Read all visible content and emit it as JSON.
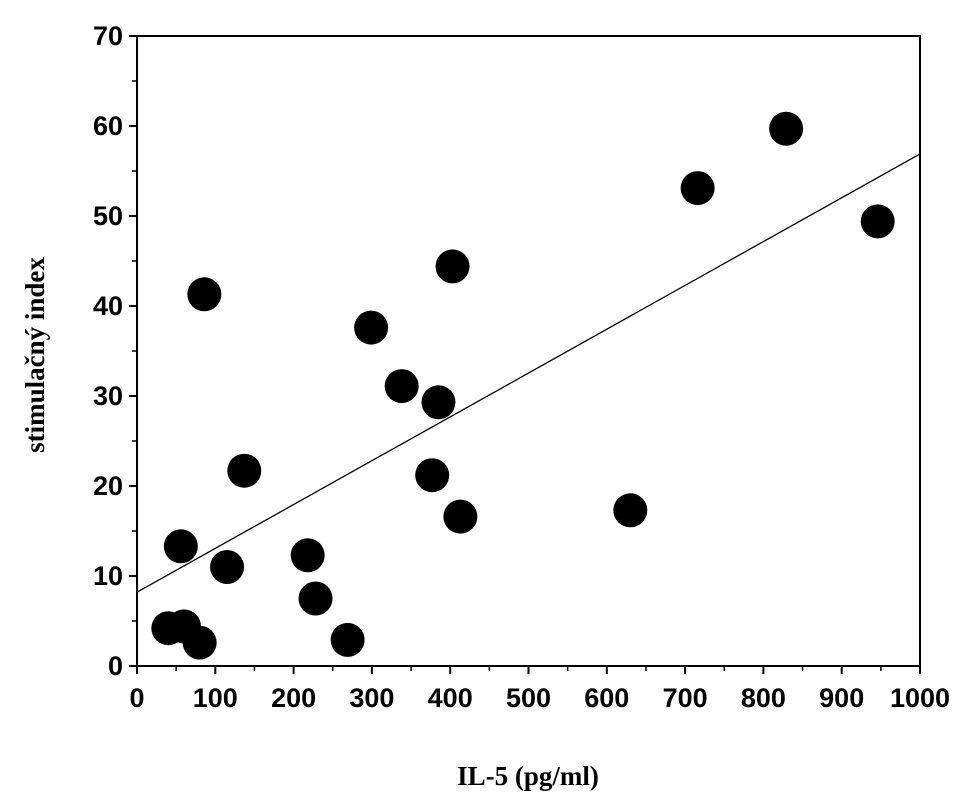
{
  "chart_data": {
    "type": "scatter",
    "title": "",
    "xlabel": "IL-5 (pg/ml)",
    "ylabel": "stimulačný index",
    "xlim": [
      0,
      1000
    ],
    "ylim": [
      0,
      70
    ],
    "x_ticks": [
      "0",
      "100",
      "200",
      "300",
      "400",
      "500",
      "600",
      "700",
      "800",
      "900",
      "1000"
    ],
    "y_ticks": [
      "0",
      "10",
      "20",
      "30",
      "40",
      "50",
      "60",
      "70"
    ],
    "grid": false,
    "legend": "none",
    "colors": {
      "points": "#000000",
      "axes": "#000000",
      "background": "#ffffff"
    },
    "points": [
      {
        "x": 40,
        "y": 4.2
      },
      {
        "x": 60,
        "y": 4.4
      },
      {
        "x": 80,
        "y": 2.6
      },
      {
        "x": 56,
        "y": 13.3
      },
      {
        "x": 86,
        "y": 41.3
      },
      {
        "x": 115,
        "y": 11.0
      },
      {
        "x": 137,
        "y": 21.7
      },
      {
        "x": 218,
        "y": 12.3
      },
      {
        "x": 228,
        "y": 7.5
      },
      {
        "x": 269,
        "y": 2.9
      },
      {
        "x": 299,
        "y": 37.6
      },
      {
        "x": 338,
        "y": 31.1
      },
      {
        "x": 377,
        "y": 21.2
      },
      {
        "x": 385,
        "y": 29.3
      },
      {
        "x": 403,
        "y": 44.4
      },
      {
        "x": 413,
        "y": 16.6
      },
      {
        "x": 630,
        "y": 17.3
      },
      {
        "x": 716,
        "y": 53.1
      },
      {
        "x": 829,
        "y": 59.7
      },
      {
        "x": 946,
        "y": 49.4
      }
    ],
    "trendline": {
      "x": [
        0,
        1000
      ],
      "y": [
        8.2,
        56.9
      ]
    }
  }
}
